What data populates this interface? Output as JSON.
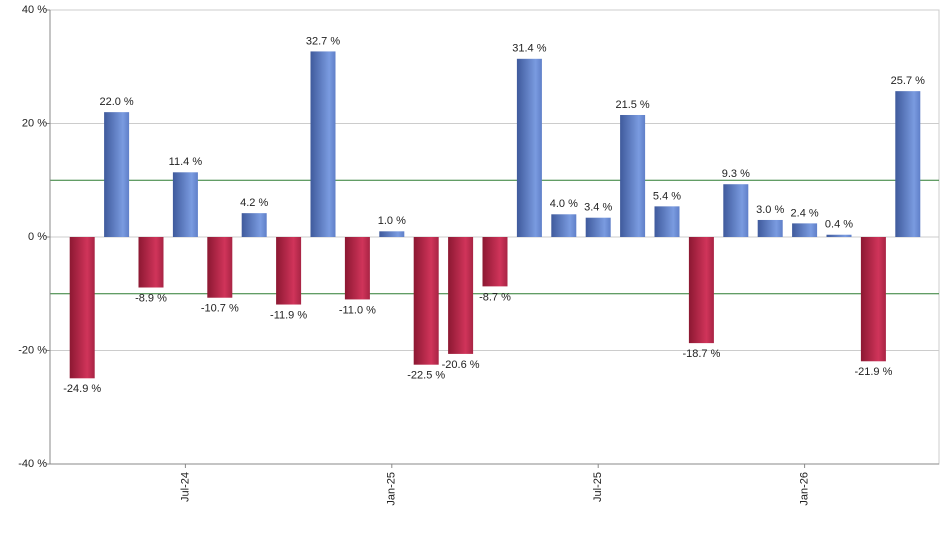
{
  "chart_data": {
    "type": "bar",
    "categories": [
      null,
      null,
      null,
      "Jul-24",
      null,
      null,
      null,
      null,
      null,
      "Jan-25",
      null,
      null,
      null,
      null,
      null,
      "Jul-25",
      null,
      null,
      null,
      null,
      null,
      "Jan-26",
      null,
      null,
      null
    ],
    "values": [
      -24.9,
      22.0,
      -8.9,
      11.4,
      -10.7,
      4.2,
      -11.9,
      32.7,
      -11.0,
      1.0,
      -22.5,
      -20.6,
      -8.7,
      31.4,
      4.0,
      3.4,
      21.5,
      5.4,
      -18.7,
      9.3,
      3.0,
      2.4,
      0.4,
      -21.9,
      25.7
    ],
    "value_labels": [
      "-24.9 %",
      "22.0 %",
      "-8.9 %",
      "11.4 %",
      "-10.7 %",
      "4.2 %",
      "-11.9 %",
      "32.7 %",
      "-11.0 %",
      "1.0 %",
      "-22.5 %",
      "-20.6 %",
      "-8.7 %",
      "31.4 %",
      "4.0 %",
      "3.4 %",
      "21.5 %",
      "5.4 %",
      "-18.7 %",
      "9.3 %",
      "3.0 %",
      "2.4 %",
      "0.4 %",
      "-21.9 %",
      "25.7 %"
    ],
    "positive_color": "#7a9be0",
    "negative_color": "#d0345a",
    "ylim": [
      -40,
      40
    ],
    "yticks": [
      {
        "value": -40,
        "label": "-40 %"
      },
      {
        "value": -20,
        "label": "-20 %"
      },
      {
        "value": 0,
        "label": "0 %"
      },
      {
        "value": 20,
        "label": "20 %"
      },
      {
        "value": 40,
        "label": "40 %"
      }
    ],
    "grid": true,
    "reference_lines": [
      10,
      -10
    ],
    "reference_color": "#2e7d32"
  }
}
